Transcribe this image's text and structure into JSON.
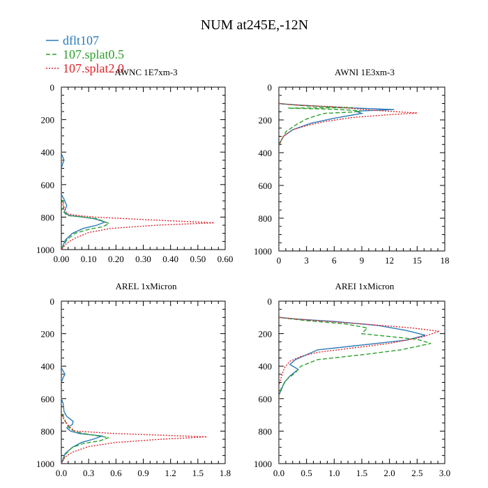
{
  "title": "NUM at245E,-12N",
  "legend": [
    {
      "label": "dflt107",
      "color": "#2a7ab9",
      "dash": "none"
    },
    {
      "label": "107.splat0.5",
      "color": "#2ca02c",
      "dash": "6,3"
    },
    {
      "label": "107.splat2.0",
      "color": "#e0232a",
      "dash": "2,2"
    }
  ],
  "chart_data": [
    {
      "type": "line",
      "title": "AWNC  1E7xm-3",
      "xlim": [
        0,
        0.6
      ],
      "ylim": [
        1000,
        0
      ],
      "xticks": [
        0,
        0.1,
        0.2,
        0.3,
        0.4,
        0.5,
        0.6
      ],
      "xtick_labels": [
        "0.00",
        "0.10",
        "0.20",
        "0.30",
        "0.40",
        "0.50",
        "0.60"
      ],
      "yticks": [
        0,
        200,
        400,
        600,
        800,
        1000
      ],
      "ytick_labels": [
        "0",
        "200",
        "400",
        "600",
        "800",
        "1000"
      ],
      "series": [
        {
          "name": "dflt107",
          "points": [
            [
              0,
              0
            ],
            [
              0,
              410
            ],
            [
              0.005,
              430
            ],
            [
              0.01,
              450
            ],
            [
              0.005,
              470
            ],
            [
              0,
              500
            ],
            [
              0,
              660
            ],
            [
              0.01,
              690
            ],
            [
              0.02,
              730
            ],
            [
              0.01,
              770
            ],
            [
              0.03,
              790
            ],
            [
              0.08,
              800
            ],
            [
              0.12,
              810
            ],
            [
              0.16,
              830
            ],
            [
              0.13,
              850
            ],
            [
              0.08,
              870
            ],
            [
              0.04,
              900
            ],
            [
              0.015,
              940
            ],
            [
              0,
              1000
            ]
          ]
        },
        {
          "name": "107.splat0.5",
          "points": [
            [
              0,
              0
            ],
            [
              0,
              680
            ],
            [
              0.01,
              720
            ],
            [
              0.005,
              760
            ],
            [
              0.02,
              790
            ],
            [
              0.08,
              800
            ],
            [
              0.13,
              810
            ],
            [
              0.175,
              840
            ],
            [
              0.15,
              860
            ],
            [
              0.1,
              875
            ],
            [
              0.05,
              900
            ],
            [
              0.02,
              940
            ],
            [
              0,
              1000
            ]
          ]
        },
        {
          "name": "107.splat2.0",
          "points": [
            [
              0,
              0
            ],
            [
              0,
              700
            ],
            [
              0.01,
              740
            ],
            [
              0.02,
              780
            ],
            [
              0.06,
              790
            ],
            [
              0.12,
              800
            ],
            [
              0.3,
              815
            ],
            [
              0.56,
              835
            ],
            [
              0.35,
              850
            ],
            [
              0.18,
              870
            ],
            [
              0.1,
              895
            ],
            [
              0.05,
              930
            ],
            [
              0.02,
              960
            ],
            [
              0,
              1000
            ]
          ]
        }
      ]
    },
    {
      "type": "line",
      "title": "AWNI  1E3xm-3",
      "xlim": [
        0,
        18
      ],
      "ylim": [
        1000,
        0
      ],
      "xticks": [
        0,
        3,
        6,
        9,
        12,
        15,
        18
      ],
      "xtick_labels": [
        "0",
        "3",
        "6",
        "9",
        "12",
        "15",
        "18"
      ],
      "yticks": [
        0,
        200,
        400,
        600,
        800,
        1000
      ],
      "ytick_labels": [
        "0",
        "200",
        "400",
        "600",
        "800",
        "1000"
      ],
      "series": [
        {
          "name": "dflt107",
          "points": [
            [
              0,
              0
            ],
            [
              0,
              100
            ],
            [
              1,
              105
            ],
            [
              3,
              112
            ],
            [
              7,
              125
            ],
            [
              12.5,
              137
            ],
            [
              9,
              145
            ],
            [
              8.5,
              150
            ],
            [
              9,
              160
            ],
            [
              6,
              190
            ],
            [
              3.5,
              220
            ],
            [
              1.5,
              260
            ],
            [
              0.5,
              300
            ],
            [
              0.2,
              330
            ],
            [
              0,
              350
            ],
            [
              0,
              1000
            ]
          ]
        },
        {
          "name": "107.splat0.5",
          "points": [
            [
              0,
              0
            ],
            [
              0,
              100
            ],
            [
              3,
              115
            ],
            [
              8,
              125
            ],
            [
              1,
              128
            ],
            [
              4,
              132
            ],
            [
              7,
              138
            ],
            [
              9,
              145
            ],
            [
              8,
              152
            ],
            [
              5,
              160
            ],
            [
              4,
              175
            ],
            [
              3,
              195
            ],
            [
              2,
              225
            ],
            [
              0.8,
              270
            ],
            [
              0.3,
              320
            ],
            [
              0,
              360
            ],
            [
              0,
              1000
            ]
          ]
        },
        {
          "name": "107.splat2.0",
          "points": [
            [
              0,
              0
            ],
            [
              0,
              100
            ],
            [
              2,
              110
            ],
            [
              6,
              120
            ],
            [
              10,
              140
            ],
            [
              15,
              158
            ],
            [
              12,
              168
            ],
            [
              8,
              185
            ],
            [
              5,
              210
            ],
            [
              3,
              235
            ],
            [
              1.5,
              260
            ],
            [
              0.5,
              300
            ],
            [
              0.2,
              330
            ],
            [
              0,
              360
            ],
            [
              0,
              1000
            ]
          ]
        }
      ]
    },
    {
      "type": "line",
      "title": "AREL  1xMicron",
      "xlim": [
        0,
        1.8
      ],
      "ylim": [
        1000,
        0
      ],
      "xticks": [
        0,
        0.3,
        0.6,
        0.9,
        1.2,
        1.5,
        1.8
      ],
      "xtick_labels": [
        "0.0",
        "0.3",
        "0.6",
        "0.9",
        "1.2",
        "1.5",
        "1.8"
      ],
      "yticks": [
        0,
        200,
        400,
        600,
        800,
        1000
      ],
      "ytick_labels": [
        "0",
        "200",
        "400",
        "600",
        "800",
        "1000"
      ],
      "series": [
        {
          "name": "dflt107",
          "points": [
            [
              0,
              0
            ],
            [
              0,
              410
            ],
            [
              0.02,
              430
            ],
            [
              0.04,
              450
            ],
            [
              0.02,
              470
            ],
            [
              0,
              500
            ],
            [
              0,
              600
            ],
            [
              0.02,
              630
            ],
            [
              0.03,
              680
            ],
            [
              0.06,
              710
            ],
            [
              0.13,
              740
            ],
            [
              0.12,
              760
            ],
            [
              0.06,
              780
            ],
            [
              0.1,
              800
            ],
            [
              0.2,
              815
            ],
            [
              0.45,
              830
            ],
            [
              0.35,
              850
            ],
            [
              0.22,
              870
            ],
            [
              0.12,
              900
            ],
            [
              0.04,
              940
            ],
            [
              0,
              1000
            ]
          ]
        },
        {
          "name": "107.splat0.5",
          "points": [
            [
              0,
              0
            ],
            [
              0,
              680
            ],
            [
              0.03,
              720
            ],
            [
              0.06,
              760
            ],
            [
              0.1,
              790
            ],
            [
              0.2,
              810
            ],
            [
              0.35,
              825
            ],
            [
              0.52,
              840
            ],
            [
              0.42,
              860
            ],
            [
              0.25,
              875
            ],
            [
              0.12,
              900
            ],
            [
              0.05,
              940
            ],
            [
              0,
              1000
            ]
          ]
        },
        {
          "name": "107.splat2.0",
          "points": [
            [
              0,
              0
            ],
            [
              0,
              690
            ],
            [
              0.03,
              730
            ],
            [
              0.07,
              760
            ],
            [
              0.1,
              780
            ],
            [
              0.15,
              800
            ],
            [
              0.6,
              815
            ],
            [
              1.6,
              835
            ],
            [
              1.1,
              850
            ],
            [
              0.6,
              870
            ],
            [
              0.3,
              895
            ],
            [
              0.12,
              930
            ],
            [
              0.04,
              960
            ],
            [
              0,
              1000
            ]
          ]
        }
      ]
    },
    {
      "type": "line",
      "title": "AREI  1xMicron",
      "xlim": [
        0,
        3.0
      ],
      "ylim": [
        1000,
        0
      ],
      "xticks": [
        0,
        0.5,
        1.0,
        1.5,
        2.0,
        2.5,
        3.0
      ],
      "xtick_labels": [
        "0.0",
        "0.5",
        "1.0",
        "1.5",
        "2.0",
        "2.5",
        "3.0"
      ],
      "yticks": [
        0,
        200,
        400,
        600,
        800,
        1000
      ],
      "ytick_labels": [
        "0",
        "200",
        "400",
        "600",
        "800",
        "1000"
      ],
      "series": [
        {
          "name": "dflt107",
          "points": [
            [
              0,
              0
            ],
            [
              0,
              100
            ],
            [
              0.3,
              110
            ],
            [
              1.0,
              125
            ],
            [
              1.8,
              150
            ],
            [
              2.3,
              180
            ],
            [
              2.65,
              210
            ],
            [
              2.3,
              240
            ],
            [
              1.5,
              270
            ],
            [
              0.7,
              300
            ],
            [
              0.5,
              330
            ],
            [
              0.3,
              360
            ],
            [
              0.2,
              390
            ],
            [
              0.35,
              420
            ],
            [
              0.2,
              460
            ],
            [
              0.1,
              500
            ],
            [
              0.05,
              540
            ],
            [
              0,
              580
            ],
            [
              0,
              1000
            ]
          ]
        },
        {
          "name": "107.splat0.5",
          "points": [
            [
              0,
              0
            ],
            [
              0,
              100
            ],
            [
              0.5,
              120
            ],
            [
              1.2,
              140
            ],
            [
              1.6,
              165
            ],
            [
              1.5,
              200
            ],
            [
              2.5,
              235
            ],
            [
              2.75,
              260
            ],
            [
              2.2,
              300
            ],
            [
              1.5,
              330
            ],
            [
              0.7,
              360
            ],
            [
              0.4,
              400
            ],
            [
              0.3,
              440
            ],
            [
              0.15,
              480
            ],
            [
              0.05,
              530
            ],
            [
              0,
              580
            ],
            [
              0,
              1000
            ]
          ]
        },
        {
          "name": "107.splat2.0",
          "points": [
            [
              0,
              0
            ],
            [
              0,
              100
            ],
            [
              0.5,
              115
            ],
            [
              1.5,
              140
            ],
            [
              2.4,
              165
            ],
            [
              2.9,
              185
            ],
            [
              2.6,
              220
            ],
            [
              2.0,
              260
            ],
            [
              1.3,
              290
            ],
            [
              0.7,
              315
            ],
            [
              0.4,
              340
            ],
            [
              0.2,
              370
            ],
            [
              0.1,
              410
            ],
            [
              0.05,
              460
            ],
            [
              0,
              520
            ],
            [
              0,
              1000
            ]
          ]
        }
      ]
    }
  ]
}
